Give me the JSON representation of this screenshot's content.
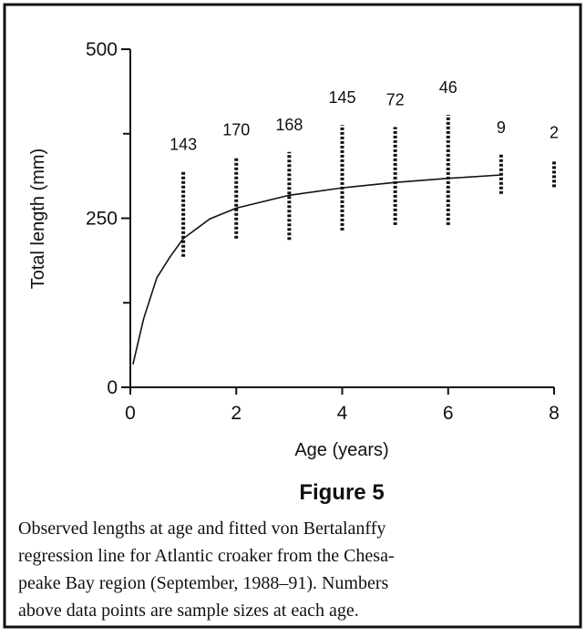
{
  "chart_data": {
    "type": "scatter",
    "x_label": "Age (years)",
    "y_label": "Total length (mm)",
    "xlim": [
      0,
      8
    ],
    "xticks": [
      0,
      2,
      4,
      6,
      8
    ],
    "ylim": [
      0,
      500
    ],
    "yticks": [
      0,
      250,
      500
    ],
    "minor_yticks": [
      125,
      375
    ],
    "color": "#111111",
    "observed": {
      "x": [
        1,
        2,
        3,
        4,
        5,
        6,
        7,
        8
      ],
      "low": [
        193,
        220,
        218,
        232,
        240,
        240,
        286,
        296
      ],
      "high": [
        319,
        340,
        348,
        388,
        385,
        403,
        344,
        336
      ],
      "sample_sizes": [
        143,
        170,
        168,
        145,
        72,
        46,
        9,
        2
      ]
    },
    "fit": {
      "x": [
        0.05,
        0.25,
        0.5,
        0.75,
        1,
        1.5,
        2,
        3,
        4,
        5,
        6,
        7
      ],
      "values": [
        34,
        101,
        162,
        193,
        220,
        249,
        265,
        284,
        295,
        303,
        309,
        314
      ]
    }
  },
  "figure": {
    "label": "Figure 5",
    "caption_lines": [
      "Observed lengths at age and fitted von Bertalanffy",
      "regression line for Atlantic croaker from the Chesa-",
      "peake Bay region (September, 1988–91). Numbers",
      "above data points are sample sizes at each age."
    ]
  }
}
